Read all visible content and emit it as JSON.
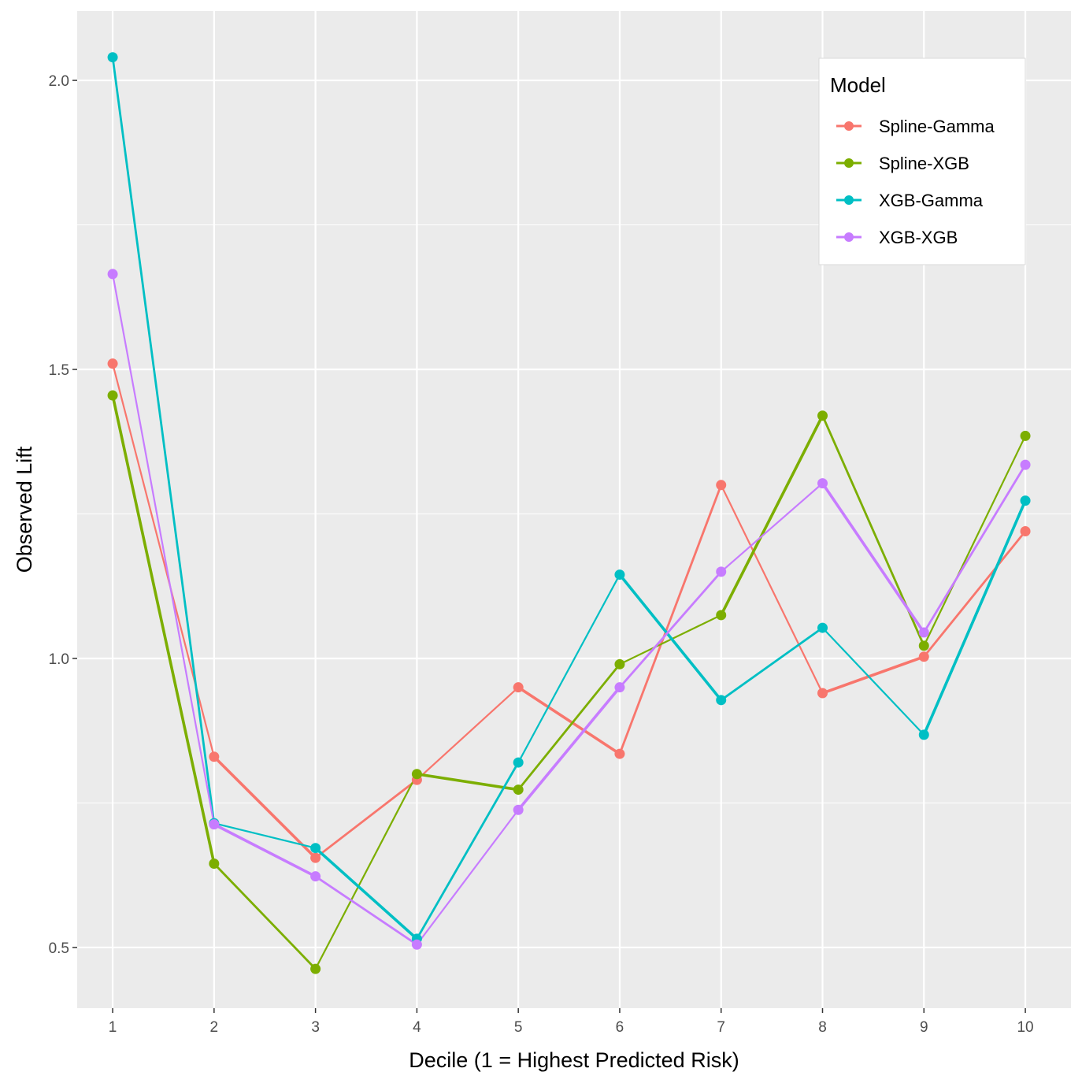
{
  "chart_data": {
    "type": "line",
    "x": [
      1,
      2,
      3,
      4,
      5,
      6,
      7,
      8,
      9,
      10
    ],
    "xlabel": "Decile (1 = Highest Predicted Risk)",
    "ylabel": "Observed Lift",
    "xlim": [
      0.65,
      10.45
    ],
    "ylim": [
      0.395,
      2.12
    ],
    "x_ticks": [
      "1",
      "2",
      "3",
      "4",
      "5",
      "6",
      "7",
      "8",
      "9",
      "10"
    ],
    "y_ticks": [
      0.5,
      1.0,
      1.5,
      2.0
    ],
    "y_tick_labels": [
      "0.5",
      "1.0",
      "1.5",
      "2.0"
    ],
    "grid": true,
    "background": "#ebebeb",
    "legend": {
      "title": "Model",
      "position": "top-right"
    },
    "series": [
      {
        "name": "Spline-Gamma",
        "color": "#F8766D",
        "values": [
          1.51,
          0.83,
          0.655,
          0.79,
          0.95,
          0.835,
          1.3,
          0.94,
          1.003,
          1.22
        ]
      },
      {
        "name": "Spline-XGB",
        "color": "#7CAE00",
        "values": [
          1.455,
          0.645,
          0.463,
          0.8,
          0.773,
          0.99,
          1.075,
          1.42,
          1.022,
          1.385
        ]
      },
      {
        "name": "XGB-Gamma",
        "color": "#00BFC4",
        "values": [
          2.04,
          0.715,
          0.672,
          0.515,
          0.82,
          1.145,
          0.928,
          1.053,
          0.868,
          1.273
        ]
      },
      {
        "name": "XGB-XGB",
        "color": "#C77CFF",
        "values": [
          1.665,
          0.713,
          0.623,
          0.505,
          0.738,
          0.95,
          1.15,
          1.303,
          1.045,
          1.335
        ]
      }
    ]
  }
}
